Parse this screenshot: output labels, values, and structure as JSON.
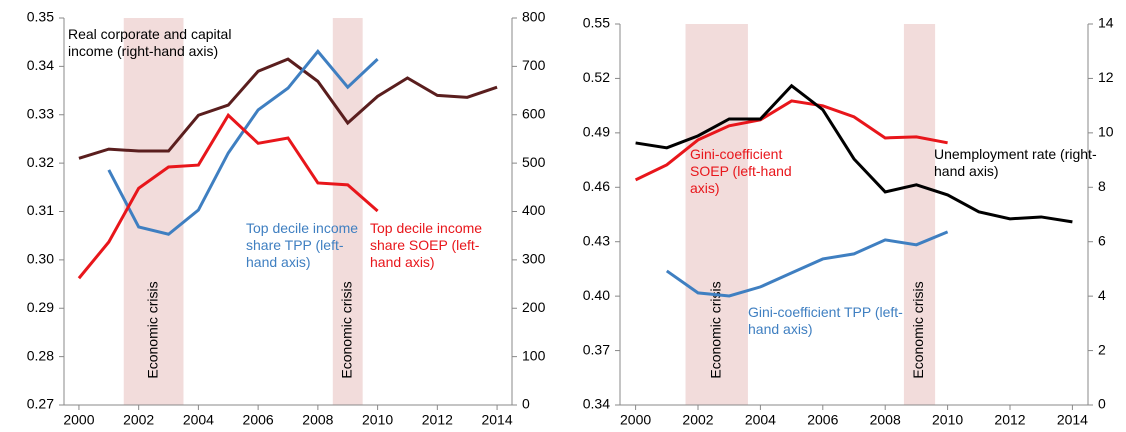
{
  "chart_data": [
    {
      "type": "line",
      "x": [
        2000,
        2001,
        2002,
        2003,
        2004,
        2005,
        2006,
        2007,
        2008,
        2009,
        2010,
        2011,
        2012,
        2013,
        2014
      ],
      "xlim": [
        1999.5,
        2014.5
      ],
      "xticks": [
        2000,
        2002,
        2004,
        2006,
        2008,
        2010,
        2012,
        2014
      ],
      "ylim": [
        0.27,
        0.35
      ],
      "yticks": [
        0.27,
        0.28,
        0.29,
        {
          "value": 0.3,
          "label": "0.30"
        },
        0.31,
        0.32,
        0.33,
        0.34,
        0.35
      ],
      "y2lim": [
        0,
        800
      ],
      "y2ticks": [
        0,
        100,
        200,
        300,
        400,
        500,
        600,
        700,
        800
      ],
      "shaded_spans": [
        {
          "from": 2001.5,
          "to": 2003.5,
          "label": "Economic crisis"
        },
        {
          "from": 2008.5,
          "to": 2009.5,
          "label": "Economic crisis"
        }
      ],
      "series": [
        {
          "name": "Real corporate and capital income (right-hand axis)",
          "color": "#5a1e1e",
          "axis": "y2",
          "values": [
            510,
            529,
            525,
            525,
            599,
            620,
            690,
            715,
            669,
            583,
            638,
            676,
            640,
            636,
            657
          ]
        },
        {
          "name": "Top decile income share TPP (left-hand axis)",
          "color": "#3f7fc1",
          "axis": "y",
          "values": [
            null,
            0.3186,
            0.3068,
            0.3053,
            0.3103,
            0.3221,
            0.331,
            0.3355,
            0.3431,
            0.3357,
            0.3415,
            null,
            null,
            null,
            null
          ]
        },
        {
          "name": "Top decile income share SOEP (left-hand axis)",
          "color": "#e8161b",
          "axis": "y",
          "values": [
            0.2962,
            0.3037,
            0.3148,
            0.3192,
            0.3196,
            0.3299,
            0.3241,
            0.3252,
            0.3159,
            0.3155,
            0.3101,
            null,
            null,
            null,
            null
          ]
        }
      ]
    },
    {
      "type": "line",
      "x": [
        2000,
        2001,
        2002,
        2003,
        2004,
        2005,
        2006,
        2007,
        2008,
        2009,
        2010,
        2011,
        2012,
        2013,
        2014
      ],
      "xlim": [
        1999.5,
        2014.5
      ],
      "xticks": [
        2000,
        2002,
        2004,
        2006,
        2008,
        2010,
        2012,
        2014
      ],
      "ylim": [
        0.34,
        0.55
      ],
      "yticks": [
        0.34,
        0.37,
        {
          "value": 0.4,
          "label": "0.40"
        },
        0.43,
        0.46,
        0.49,
        0.52,
        0.55
      ],
      "y2lim": [
        0,
        14
      ],
      "y2ticks": [
        0,
        2,
        4,
        6,
        8,
        10,
        12,
        14
      ],
      "shaded_spans": [
        {
          "from": 2001.6,
          "to": 2003.6,
          "label": "Economic crisis"
        },
        {
          "from": 2008.6,
          "to": 2009.6,
          "label": "Economic crisis"
        }
      ],
      "series": [
        {
          "name": "Gini-coefficient SOEP (left-hand axis)",
          "color": "#e8161b",
          "axis": "y",
          "values": [
            0.4641,
            0.4724,
            0.4861,
            0.4939,
            0.4972,
            0.5076,
            0.5049,
            0.4988,
            0.4872,
            0.4878,
            0.4845,
            null,
            null,
            null,
            null
          ]
        },
        {
          "name": "Unemployment rate (right-hand axis)",
          "color": "#000000",
          "axis": "y2",
          "values": [
            9.63,
            9.45,
            9.89,
            10.51,
            10.51,
            11.73,
            10.85,
            9.04,
            7.83,
            8.09,
            7.72,
            7.1,
            6.84,
            6.91,
            6.73
          ]
        },
        {
          "name": "Gini-coefficient TPP (left-hand axis)",
          "color": "#3f7fc1",
          "axis": "y",
          "values": [
            null,
            0.4139,
            0.4018,
            0.4001,
            0.4051,
            0.4128,
            0.4205,
            0.4233,
            0.431,
            0.4283,
            0.4354,
            null,
            null,
            null,
            null
          ]
        }
      ]
    }
  ]
}
